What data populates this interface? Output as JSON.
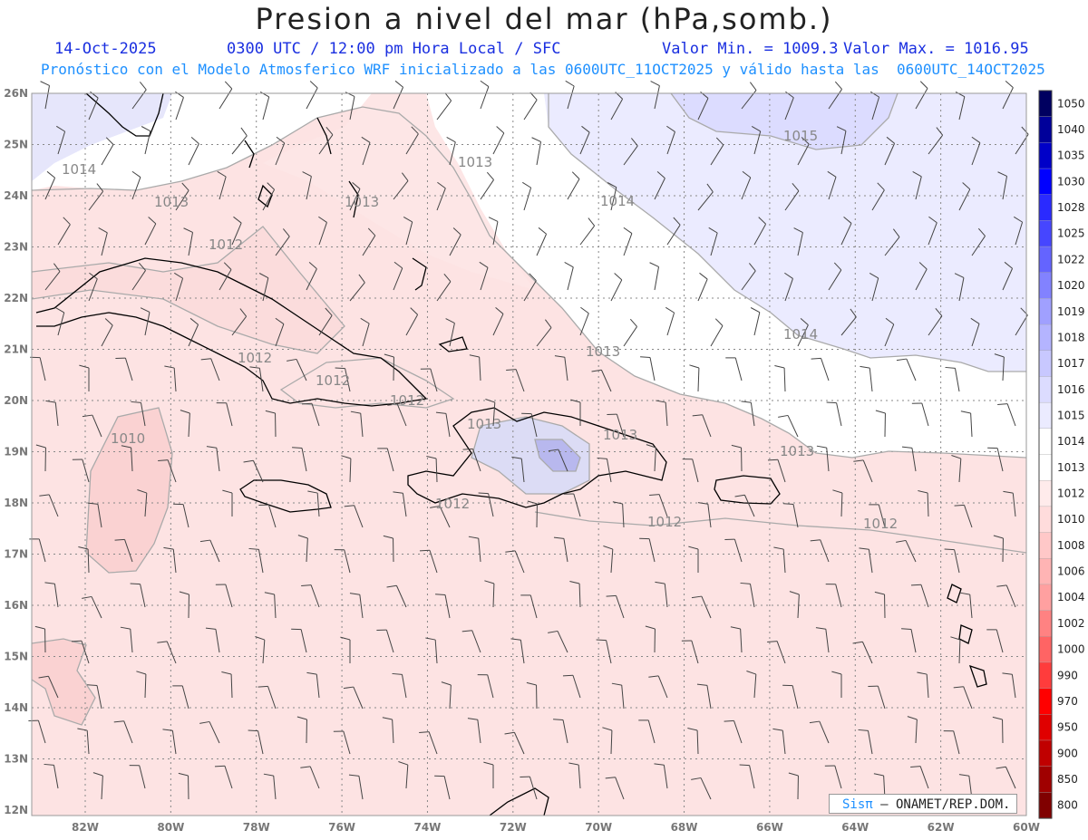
{
  "title": "Presion a nivel del mar (hPa,somb.)",
  "header": {
    "date": "14-Oct-2025",
    "time": "0300 UTC / 12:00 pm Hora Local / SFC",
    "min": "Valor Min. = 1009.3",
    "max": "Valor Max. = 1016.95",
    "model": "Pronóstico con el Modelo Atmosferico WRF inicializado a las 0600UTC_11OCT2025 y válido hasta las  0600UTC_14OCT2025"
  },
  "credit": {
    "logo": "Sisπ",
    "text": " – ONAMET/REP.DOM."
  },
  "axes": {
    "lon_labels": [
      "82W",
      "80W",
      "78W",
      "76W",
      "74W",
      "72W",
      "70W",
      "68W",
      "66W",
      "64W",
      "62W",
      "60W"
    ],
    "lat_labels": [
      "26N",
      "25N",
      "24N",
      "23N",
      "22N",
      "21N",
      "20N",
      "19N",
      "18N",
      "17N",
      "16N",
      "15N",
      "14N",
      "13N",
      "12N"
    ]
  },
  "colorbar": {
    "labels": [
      "1050",
      "1040",
      "1035",
      "1030",
      "1028",
      "1025",
      "1022",
      "1020",
      "1019",
      "1018",
      "1017",
      "1016",
      "1015",
      "1014",
      "1013",
      "1012",
      "1010",
      "1008",
      "1006",
      "1004",
      "1002",
      "1000",
      "990",
      "970",
      "950",
      "900",
      "850",
      "800"
    ],
    "colors": [
      "#000060",
      "#00009a",
      "#0000c8",
      "#0000ff",
      "#2a2aff",
      "#4646ff",
      "#6464ff",
      "#8282ff",
      "#a0a0ff",
      "#b4b4ff",
      "#c8c8ff",
      "#dcdcff",
      "#ebebff",
      "#ffffff",
      "#ffffff",
      "#ffebeb",
      "#ffdcdc",
      "#ffc8c8",
      "#ffb4b4",
      "#ffa0a0",
      "#ff8282",
      "#ff6464",
      "#ff3c3c",
      "#ff0000",
      "#e00000",
      "#c00000",
      "#a00000",
      "#800000"
    ]
  },
  "contour_labels": [
    "1014",
    "1013",
    "1012",
    "1013",
    "1014",
    "1015",
    "1012",
    "1013",
    "1012",
    "1012",
    "1013",
    "1013",
    "1014",
    "1013",
    "1012",
    "1010",
    "1013",
    "1012",
    "1012"
  ]
}
